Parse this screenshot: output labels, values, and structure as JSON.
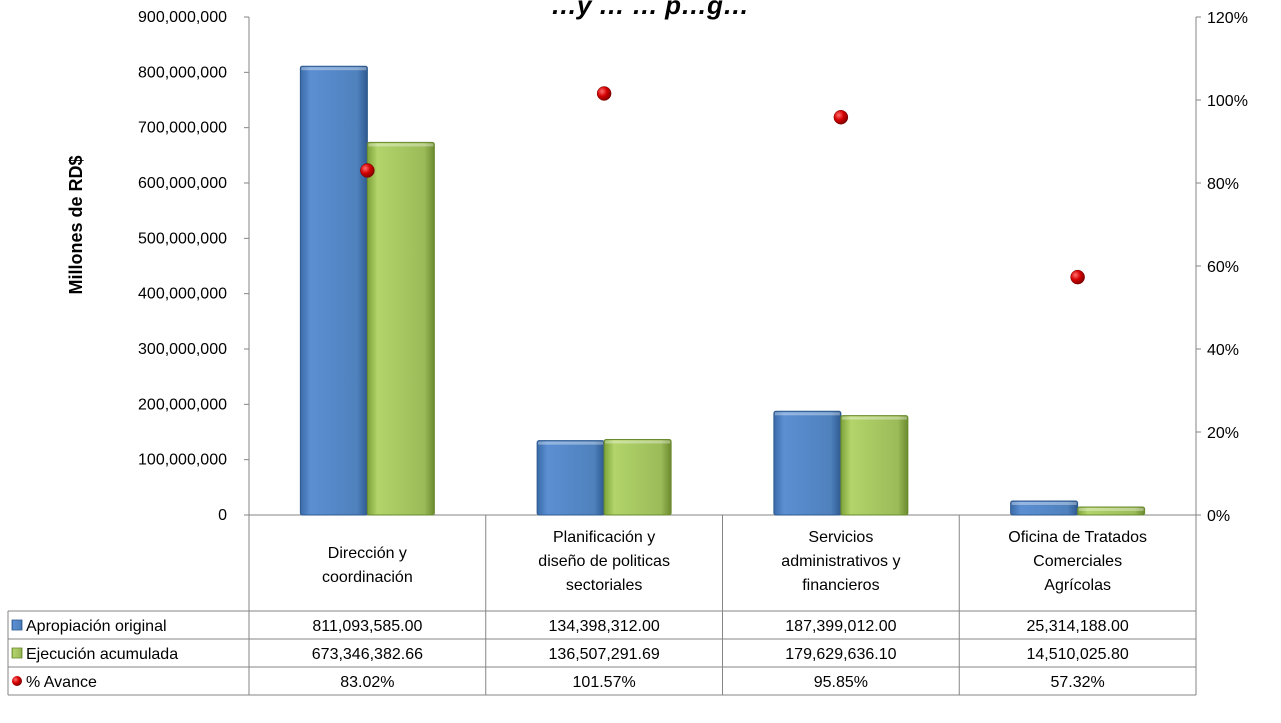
{
  "chart_data": {
    "type": "bar",
    "title": "…y … … p…g…",
    "ylabel": "Millones de RD$",
    "ylim": [
      0,
      900000000
    ],
    "y_ticks": [
      "900,000,000",
      "800,000,000",
      "700,000,000",
      "600,000,000",
      "500,000,000",
      "400,000,000",
      "300,000,000",
      "200,000,000",
      "100,000,000",
      "0"
    ],
    "y2lim": [
      0,
      120
    ],
    "y2_ticks": [
      "120%",
      "100%",
      "80%",
      "60%",
      "40%",
      "20%",
      "0%"
    ],
    "categories": [
      [
        "Dirección y",
        "coordinación"
      ],
      [
        "Planificación y",
        "diseño de politicas",
        "sectoriales"
      ],
      [
        "Servicios",
        "administrativos y",
        "financieros"
      ],
      [
        "Oficina de Tratados",
        "Comerciales",
        "Agrícolas"
      ]
    ],
    "series": [
      {
        "name": "Apropiación original",
        "axis": "left",
        "kind": "bar",
        "color": "#4f81bd",
        "values": [
          811093585.0,
          134398312.0,
          187399012.0,
          25314188.0
        ],
        "labels": [
          "811,093,585.00",
          "134,398,312.00",
          "187,399,012.00",
          "25,314,188.00"
        ]
      },
      {
        "name": "Ejecución acumulada",
        "axis": "left",
        "kind": "bar",
        "color": "#9bbb59",
        "values": [
          673346382.66,
          136507291.69,
          179629636.1,
          14510025.8
        ],
        "labels": [
          "673,346,382.66",
          "136,507,291.69",
          "179,629,636.10",
          "14,510,025.80"
        ]
      },
      {
        "name": "% Avance",
        "axis": "right",
        "kind": "scatter",
        "color": "#c00000",
        "values": [
          83.02,
          101.57,
          95.85,
          57.32
        ],
        "labels": [
          "83.02%",
          "101.57%",
          "95.85%",
          "57.32%"
        ]
      }
    ],
    "legend": "data-table",
    "grid": false
  }
}
